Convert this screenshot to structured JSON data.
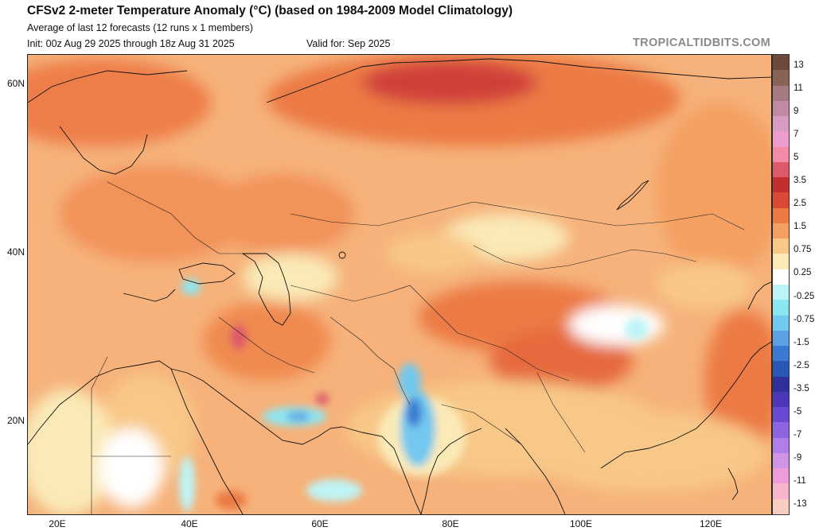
{
  "header": {
    "title": "CFSv2 2-meter Temperature Anomaly (°C) (based on 1984-2009 Model Climatology)",
    "subtitle": "Average of last 12 forecasts (12 runs x 1 members)",
    "init": "Init: 00z Aug 29 2025 through 18z Aug 31 2025",
    "valid": "Valid for: Sep 2025",
    "brand": "TROPICALTIDBITS.COM"
  },
  "map": {
    "lat_labels": [
      "60N",
      "40N",
      "20N"
    ],
    "lon_labels": [
      "20E",
      "40E",
      "60E",
      "80E",
      "100E",
      "120E"
    ]
  },
  "colorbar": {
    "labels": [
      "13",
      "11",
      "9",
      "7",
      "5",
      "3.5",
      "2.5",
      "1.5",
      "0.75",
      "0.25",
      "-0.25",
      "-0.75",
      "-1.5",
      "-2.5",
      "-3.5",
      "-5",
      "-7",
      "-9",
      "-11",
      "-13"
    ],
    "colors": [
      "#6e4a3c",
      "#8a6358",
      "#a57a80",
      "#c08aa4",
      "#d89cc0",
      "#ee9ccc",
      "#f28aa8",
      "#dd5a6c",
      "#c42e2e",
      "#dc4a36",
      "#ec7a44",
      "#f4a062",
      "#f8c888",
      "#faeab8",
      "#ffffff",
      "#bef4f6",
      "#8ce6f2",
      "#72c8ee",
      "#5aa2e4",
      "#3a7ad2",
      "#2c56b8",
      "#30309a",
      "#4a38b8",
      "#6a4ad2",
      "#8e64e0",
      "#b07ee8",
      "#d094e4",
      "#ee9cd8",
      "#f8b6ce",
      "#f8ccc0"
    ]
  }
}
